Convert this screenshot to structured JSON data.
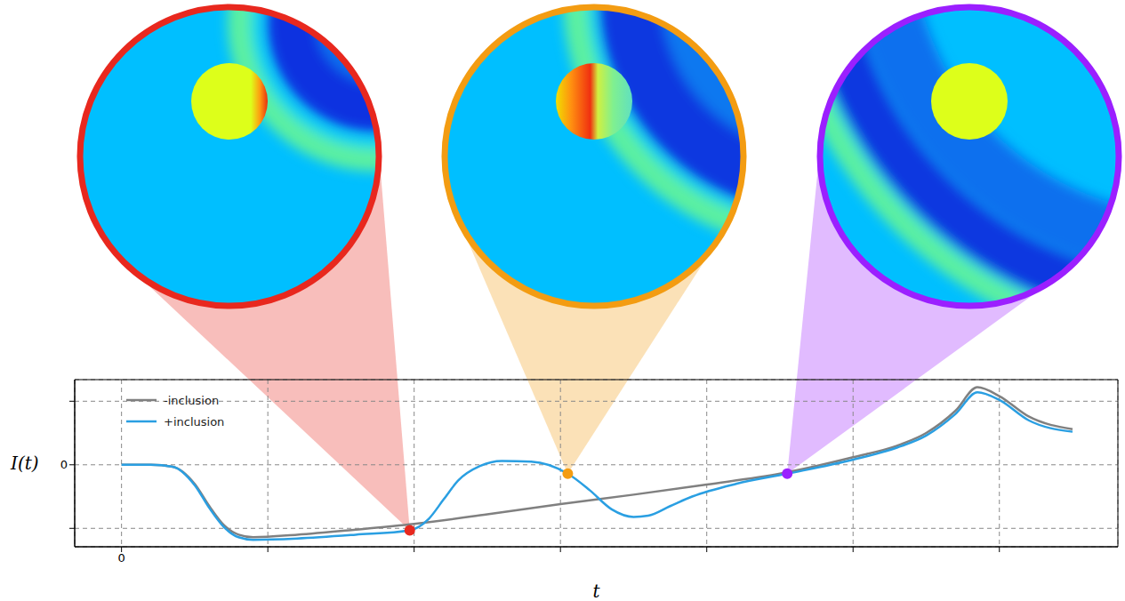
{
  "chart_data": {
    "type": "line",
    "xlabel": "t",
    "ylabel": "I(t)",
    "xlim": [
      -0.32,
      6.81
    ],
    "ylim": [
      -1.29,
      1.34
    ],
    "xticks": [
      0,
      {
        "value": 1,
        "label": null
      },
      {
        "value": 2,
        "label": null
      },
      {
        "value": 3,
        "label": null
      },
      {
        "value": 4,
        "label": null
      },
      {
        "value": 5,
        "label": null
      },
      {
        "value": 6,
        "label": null
      }
    ],
    "yticks": [
      {
        "value": -1,
        "label": null
      },
      0,
      {
        "value": 1,
        "label": null
      }
    ],
    "grid": true,
    "legend": "upper left",
    "series": [
      {
        "name": "-inclusion",
        "color": "#808080",
        "x": [
          0,
          0.2,
          0.35,
          0.5,
          0.6,
          0.7,
          0.8,
          0.9,
          1.2,
          1.6,
          2,
          2.5,
          3,
          3.5,
          4,
          4.5,
          5,
          5.3,
          5.5,
          5.7,
          5.85,
          6,
          6.2,
          6.5
        ],
        "values": [
          0,
          0,
          -0.03,
          -0.3,
          -0.65,
          -0.95,
          -1.1,
          -1.14,
          -1.1,
          -1.02,
          -0.93,
          -0.78,
          -0.62,
          -0.47,
          -0.31,
          -0.14,
          0.12,
          0.3,
          0.5,
          0.85,
          1.22,
          1.08,
          0.76,
          0.56
        ]
      },
      {
        "name": "+inclusion",
        "color": "#2a9fe2",
        "x": [
          0,
          0.2,
          0.35,
          0.5,
          0.6,
          0.7,
          0.8,
          0.9,
          1.2,
          1.6,
          1.97,
          2.1,
          2.2,
          2.3,
          2.45,
          2.6,
          2.8,
          3.05,
          3.2,
          3.35,
          3.5,
          3.6,
          3.75,
          3.9,
          4.2,
          4.55,
          5,
          5.3,
          5.5,
          5.7,
          5.85,
          6,
          6.2,
          6.5
        ],
        "values": [
          0,
          0,
          -0.03,
          -0.32,
          -0.68,
          -0.98,
          -1.14,
          -1.18,
          -1.16,
          -1.1,
          -1.03,
          -0.85,
          -0.55,
          -0.25,
          -0.02,
          0.06,
          0.05,
          -0.14,
          -0.4,
          -0.7,
          -0.82,
          -0.8,
          -0.65,
          -0.5,
          -0.3,
          -0.14,
          0.08,
          0.27,
          0.46,
          0.8,
          1.14,
          1.02,
          0.7,
          0.52
        ]
      }
    ],
    "highlights": [
      {
        "x": 1.97,
        "y": -1.03,
        "color": "#e8281e"
      },
      {
        "x": 3.05,
        "y": -0.14,
        "color": "#f39c12"
      },
      {
        "x": 4.55,
        "y": -0.14,
        "color": "#9b1fff"
      }
    ]
  }
}
